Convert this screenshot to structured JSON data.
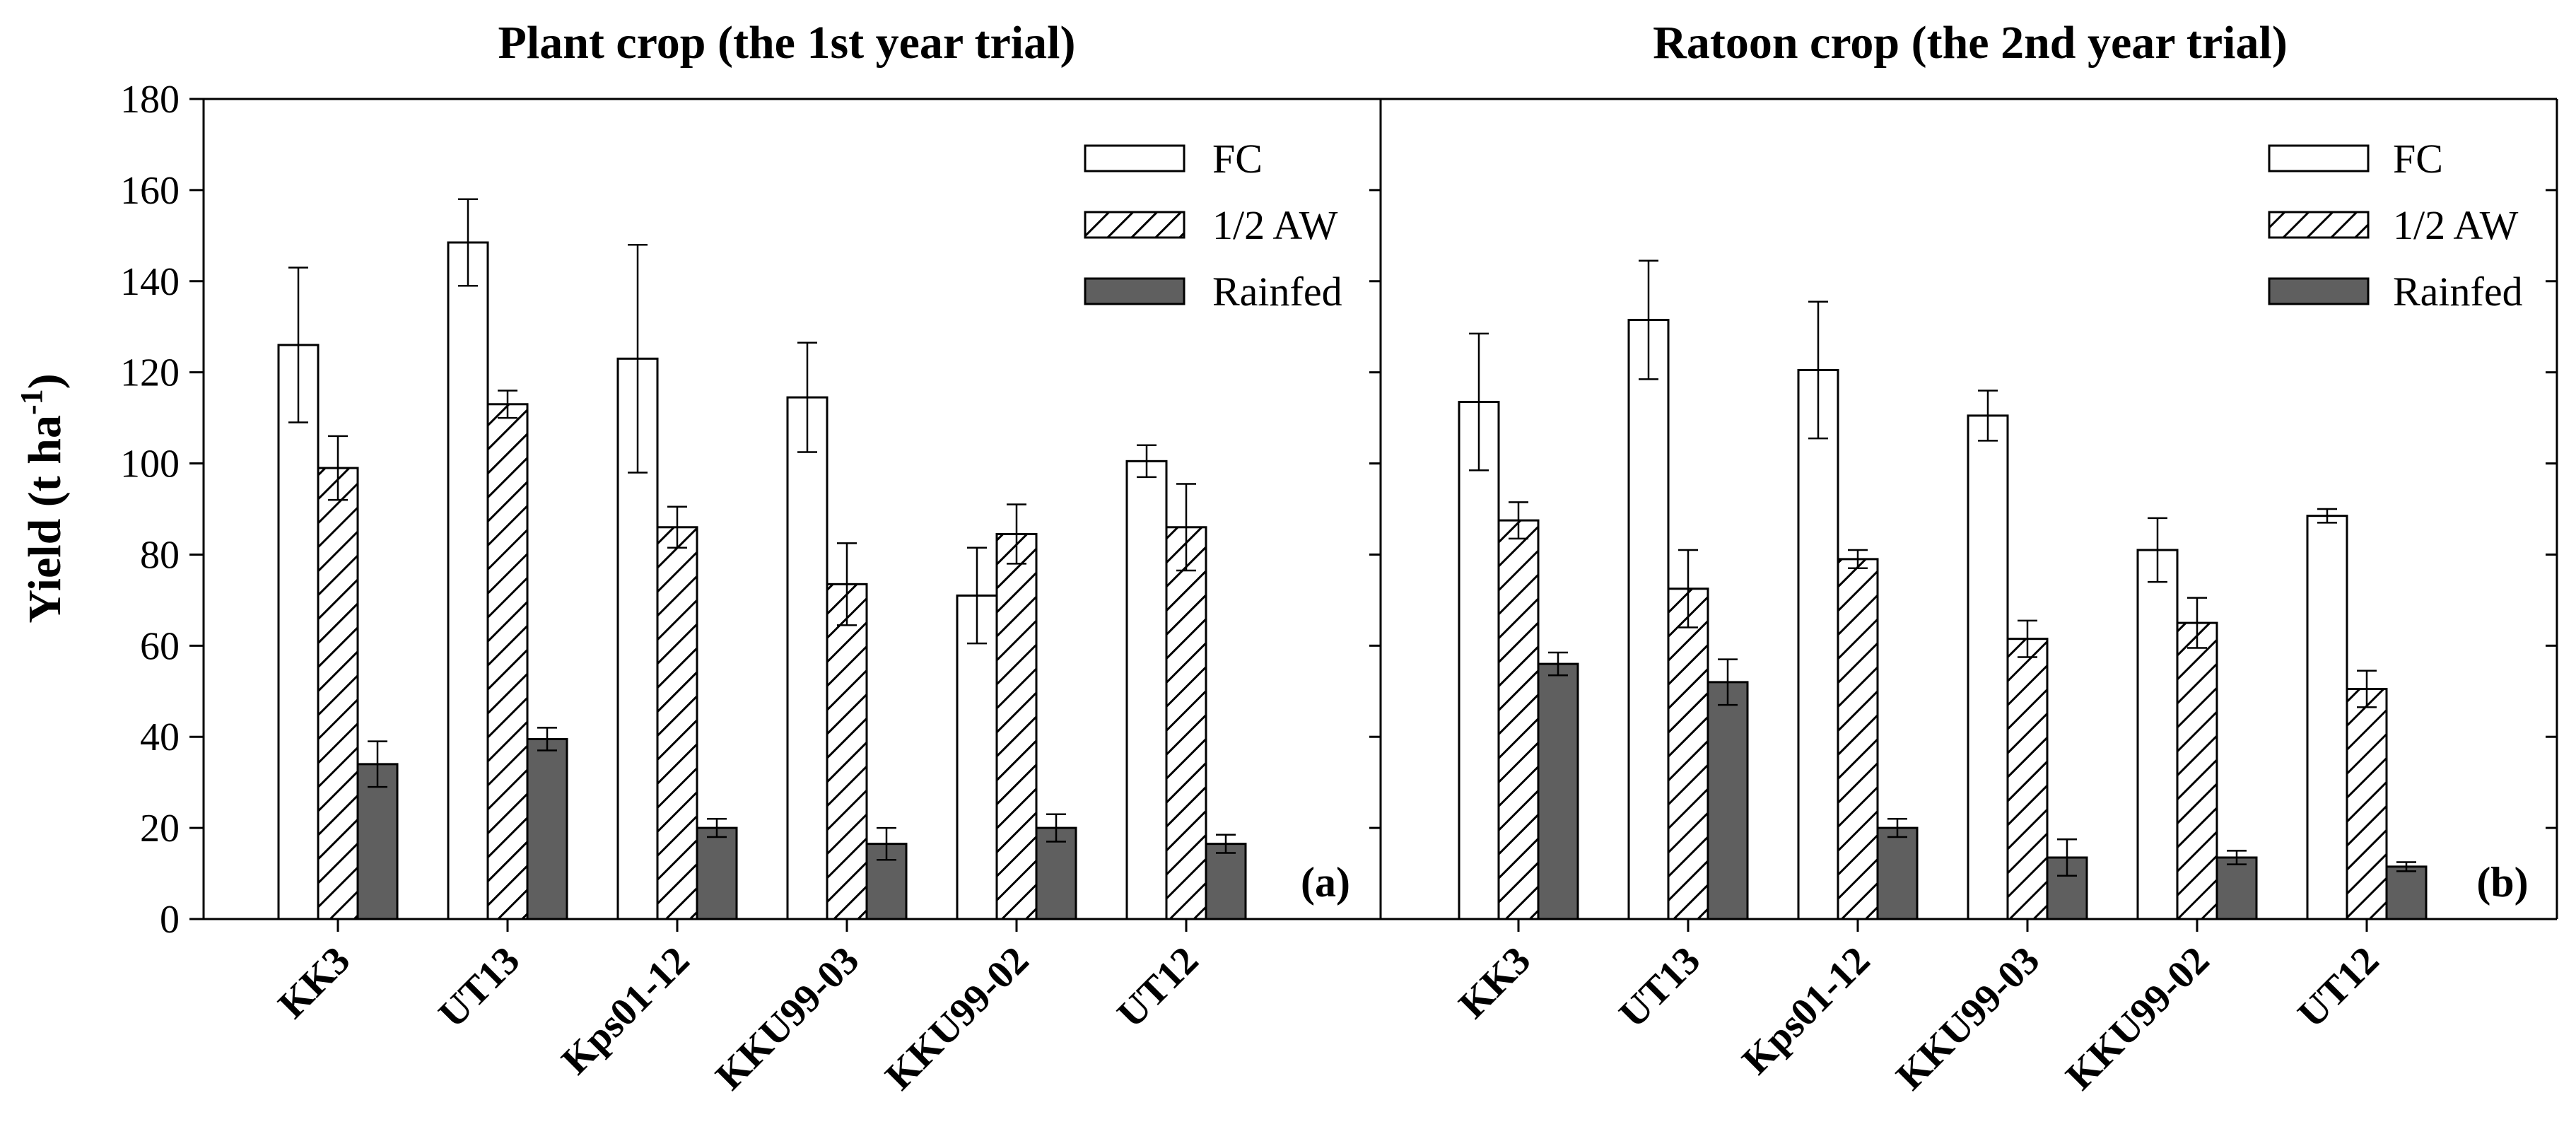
{
  "chart_data": {
    "type": "bar",
    "ylabel": "Yield (t ha",
    "ylabel_sup": "-1",
    "ylabel_close": ")",
    "ylim": [
      0,
      180
    ],
    "yticks": [
      0,
      20,
      40,
      60,
      80,
      100,
      120,
      140,
      160,
      180
    ],
    "categories": [
      "KK3",
      "UT13",
      "Kps01-12",
      "KKU99-03",
      "KKU99-02",
      "UT12"
    ],
    "legend": [
      "FC",
      "1/2 AW",
      "Rainfed"
    ],
    "colors": {
      "fc": "#ffffff",
      "aw": "#ffffff",
      "rainfed": "#5f5f5f",
      "stroke": "#000000"
    },
    "panels": [
      {
        "title": "Plant crop (the 1st year trial)",
        "label": "(a)",
        "series": [
          {
            "name": "FC",
            "values": [
              126,
              148.5,
              123,
              114.5,
              71,
              100.5
            ],
            "errors": [
              17,
              9.5,
              25,
              12,
              10.5,
              3.5
            ]
          },
          {
            "name": "1/2 AW",
            "values": [
              99,
              113,
              86,
              73.5,
              84.5,
              86
            ],
            "errors": [
              7,
              3,
              4.5,
              9,
              6.5,
              9.5
            ]
          },
          {
            "name": "Rainfed",
            "values": [
              34,
              39.5,
              20,
              16.5,
              20,
              16.5
            ],
            "errors": [
              5,
              2.5,
              2,
              3.5,
              3,
              2
            ]
          }
        ]
      },
      {
        "title": "Ratoon crop (the 2nd year trial)",
        "label": "(b)",
        "series": [
          {
            "name": "FC",
            "values": [
              113.5,
              131.5,
              120.5,
              110.5,
              81,
              88.5
            ],
            "errors": [
              15,
              13,
              15,
              5.5,
              7,
              1.5
            ]
          },
          {
            "name": "1/2 AW",
            "values": [
              87.5,
              72.5,
              79,
              61.5,
              65,
              50.5
            ],
            "errors": [
              4,
              8.5,
              2,
              4,
              5.5,
              4
            ]
          },
          {
            "name": "Rainfed",
            "values": [
              56,
              52,
              20,
              13.5,
              13.5,
              11.5
            ],
            "errors": [
              2.5,
              5,
              2,
              4,
              1.5,
              1
            ]
          }
        ]
      }
    ]
  }
}
